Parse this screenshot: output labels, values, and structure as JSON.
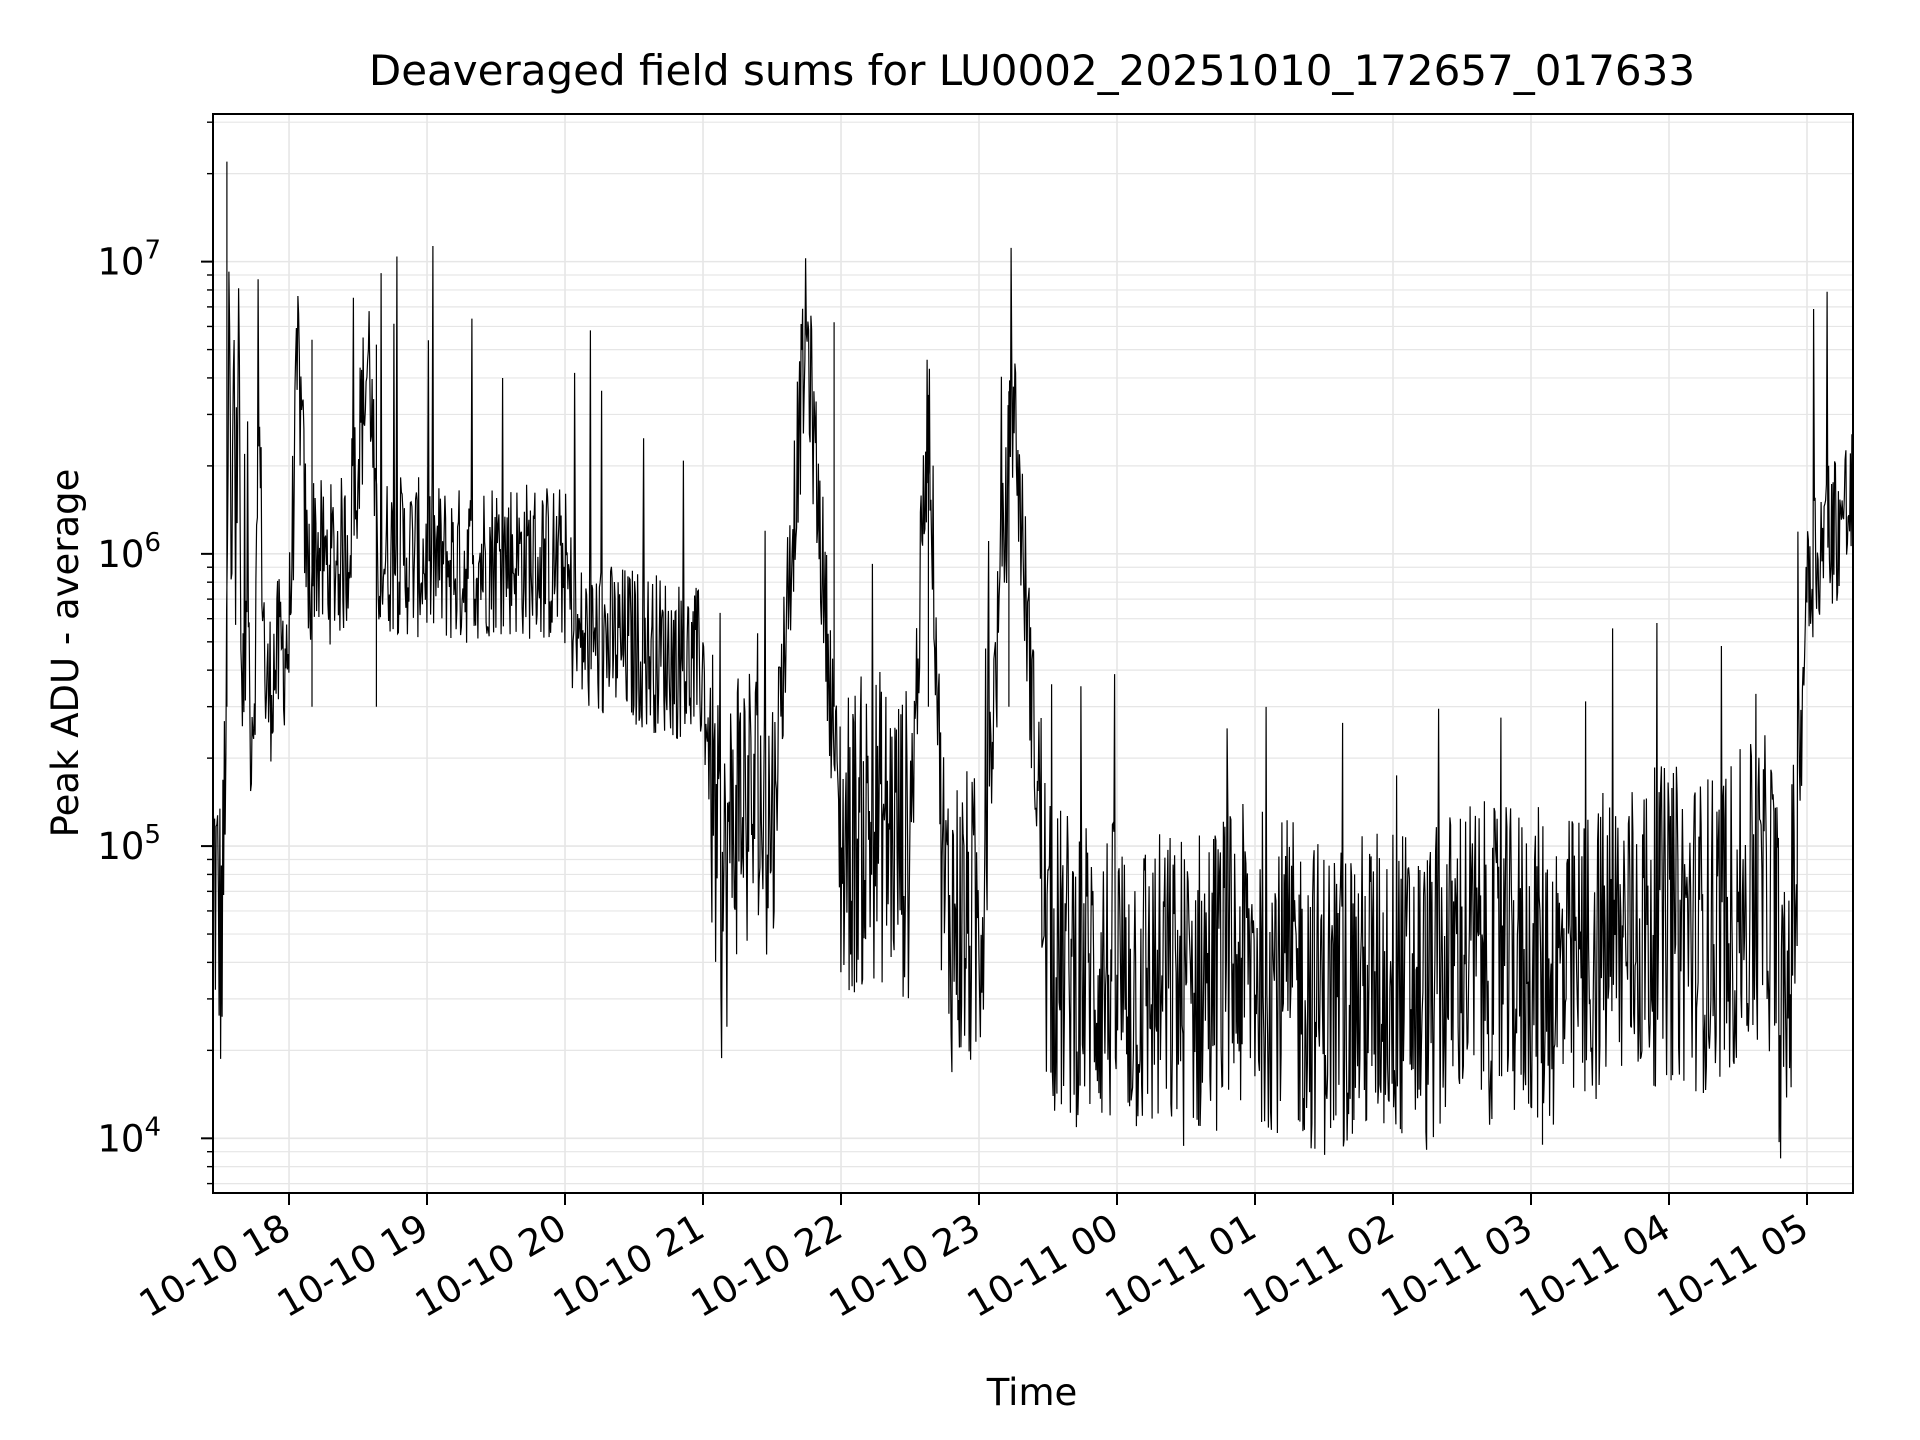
{
  "chart_data": {
    "type": "line",
    "title": "Deaveraged field sums for LU0002_20251010_172657_017633",
    "xlabel": "Time",
    "ylabel": "Peak ADU - average",
    "yscale": "log",
    "xlim": [
      "2025-10-10 17:26:57",
      "2025-10-11 05:20:00"
    ],
    "ylim": [
      6500,
      32000000
    ],
    "grid": true,
    "legend": "none",
    "line_color": "#000000",
    "x_ticks": [
      "10-10 18",
      "10-10 19",
      "10-10 20",
      "10-10 21",
      "10-10 22",
      "10-10 23",
      "10-11 00",
      "10-11 01",
      "10-11 02",
      "10-11 03",
      "10-11 04",
      "10-11 05"
    ],
    "y_ticks": [
      {
        "base": "10",
        "exp": "4",
        "value": 10000
      },
      {
        "base": "10",
        "exp": "5",
        "value": 100000
      },
      {
        "base": "10",
        "exp": "6",
        "value": 1000000
      },
      {
        "base": "10",
        "exp": "7",
        "value": 10000000
      }
    ],
    "series": [
      {
        "x": [
          "2025-10-10 17:27",
          "2025-10-10 17:29",
          "2025-10-10 17:31",
          "2025-10-10 17:33",
          "2025-10-10 17:34",
          "2025-10-10 17:35",
          "2025-10-10 17:36",
          "2025-10-10 17:37",
          "2025-10-10 17:38",
          "2025-10-10 17:39",
          "2025-10-10 17:40",
          "2025-10-10 17:41",
          "2025-10-10 17:42",
          "2025-10-10 17:43",
          "2025-10-10 17:45",
          "2025-10-10 17:47",
          "2025-10-10 17:50",
          "2025-10-10 17:53",
          "2025-10-10 17:56",
          "2025-10-10 18:00",
          "2025-10-10 18:04",
          "2025-10-10 18:08",
          "2025-10-10 18:10",
          "2025-10-10 18:11",
          "2025-10-10 18:15",
          "2025-10-10 18:25",
          "2025-10-10 18:35",
          "2025-10-10 18:38",
          "2025-10-10 18:45",
          "2025-10-10 19:00",
          "2025-10-10 19:15",
          "2025-10-10 19:30",
          "2025-10-10 19:45",
          "2025-10-10 20:00",
          "2025-10-10 20:05",
          "2025-10-10 20:15",
          "2025-10-10 20:30",
          "2025-10-10 20:45",
          "2025-10-10 21:00",
          "2025-10-10 21:05",
          "2025-10-10 21:08",
          "2025-10-10 21:15",
          "2025-10-10 21:30",
          "2025-10-10 21:45",
          "2025-10-10 22:00",
          "2025-10-10 22:15",
          "2025-10-10 22:30",
          "2025-10-10 22:38",
          "2025-10-10 22:45",
          "2025-10-10 23:00",
          "2025-10-10 23:15",
          "2025-10-10 23:30",
          "2025-10-10 23:45",
          "2025-10-11 00:00",
          "2025-10-11 00:15",
          "2025-10-11 00:30",
          "2025-10-11 00:45",
          "2025-10-11 01:00",
          "2025-10-11 01:15",
          "2025-10-11 01:30",
          "2025-10-11 01:45",
          "2025-10-11 02:00",
          "2025-10-11 02:15",
          "2025-10-11 02:30",
          "2025-10-11 02:45",
          "2025-10-11 03:00",
          "2025-10-11 03:15",
          "2025-10-11 03:30",
          "2025-10-11 03:45",
          "2025-10-11 04:00",
          "2025-10-11 04:15",
          "2025-10-11 04:30",
          "2025-10-11 04:45",
          "2025-10-11 04:50",
          "2025-10-11 04:55",
          "2025-10-11 05:00",
          "2025-10-11 05:10",
          "2025-10-11 05:20"
        ],
        "y": [
          90000,
          60000,
          45000,
          400000,
          10000000,
          420000,
          9000000,
          400000,
          11000000,
          450000,
          300000,
          250000,
          1500000,
          250000,
          350000,
          2500000,
          300000,
          400000,
          450000,
          500000,
          5000000,
          800000,
          900000,
          1100000,
          900000,
          1000000,
          5000000,
          950000,
          1000000,
          950000,
          900000,
          1000000,
          950000,
          900000,
          500000,
          500000,
          480000,
          450000,
          400000,
          120000,
          60000,
          150000,
          120000,
          6000000,
          100000,
          120000,
          100000,
          3500000,
          60000,
          50000,
          3500000,
          40000,
          38000,
          35000,
          33000,
          32000,
          38000,
          40000,
          35000,
          30000,
          32000,
          35000,
          30000,
          45000,
          38000,
          40000,
          35000,
          45000,
          50000,
          55000,
          50000,
          60000,
          70000,
          20000,
          80000,
          900000,
          1200000,
          1500000
        ],
        "spikes": [
          {
            "x": "2025-10-10 17:33",
            "y": 22000000
          },
          {
            "x": "2025-10-10 18:10",
            "y": 5400000
          },
          {
            "x": "2025-10-10 18:38",
            "y": 5200000
          },
          {
            "x": "2025-10-10 21:57",
            "y": 6200000
          },
          {
            "x": "2025-10-10 22:38",
            "y": 3500000
          },
          {
            "x": "2025-10-10 23:13",
            "y": 3600000
          },
          {
            "x": "2025-10-11 03:05",
            "y": 9500
          }
        ]
      }
    ]
  }
}
